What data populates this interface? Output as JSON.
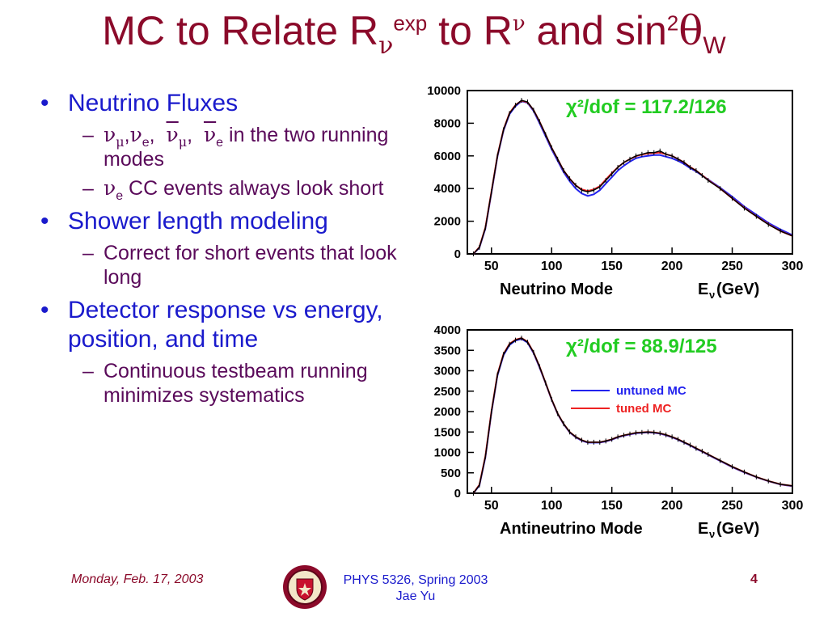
{
  "title": {
    "part1": "MC to Relate R",
    "nu1": "ν",
    "exp": "exp",
    "part2": " to R",
    "nu2": "ν",
    "part3": " and sin",
    "two": "2",
    "theta": "θ",
    "w": "W"
  },
  "bullets": [
    {
      "text": "Neutrino Fluxes",
      "subs": [
        {
          "dash": "–",
          "nu_mu": "ν",
          "mu": "μ",
          "comma1": ",",
          "nu_e": "ν",
          "e1": "e",
          "comma2": ",  ",
          "anu_mu": "ν",
          "mu2": "μ",
          "comma3": ",  ",
          "anu_e": "ν",
          "e2": "e",
          "rest": " in the two running modes"
        },
        {
          "dash": "–",
          "nu": "ν",
          "e": "e",
          "rest": " CC events always look short"
        }
      ]
    },
    {
      "text": "Shower length modeling",
      "subs": [
        {
          "dash": "–",
          "rest": "Correct for short events that look long"
        }
      ]
    },
    {
      "text": "Detector response vs energy, position, and time",
      "subs": [
        {
          "dash": "–",
          "rest": "Continuous testbeam running minimizes systematics"
        }
      ]
    }
  ],
  "colors": {
    "untuned": "#2222ee",
    "tuned": "#ee2222",
    "data": "#000000",
    "chi": "#22cc22",
    "title": "#8b0a2a",
    "bullet": "#1a1acc",
    "sub": "#5a0a5a"
  },
  "chart_data": [
    {
      "type": "line",
      "chi2_label": "χ²/dof = 117.2/126",
      "xlabel": "Neutrino Mode",
      "xlabel_var": "E",
      "xlabel_sub": "ν",
      "xlabel_unit": " (GeV)",
      "xlim": [
        30,
        300
      ],
      "ylim": [
        0,
        10000
      ],
      "xticks": [
        50,
        100,
        150,
        200,
        250,
        300
      ],
      "yticks": [
        0,
        2000,
        4000,
        6000,
        8000,
        10000
      ],
      "x": [
        35,
        40,
        45,
        50,
        55,
        60,
        65,
        70,
        75,
        80,
        85,
        90,
        95,
        100,
        105,
        110,
        115,
        120,
        125,
        130,
        135,
        140,
        145,
        150,
        155,
        160,
        165,
        170,
        175,
        180,
        185,
        190,
        195,
        200,
        205,
        210,
        215,
        220,
        225,
        230,
        240,
        250,
        260,
        270,
        280,
        290,
        300
      ],
      "series": [
        {
          "name": "data",
          "values": [
            0,
            400,
            1600,
            3800,
            6000,
            7600,
            8600,
            9100,
            9400,
            9300,
            8800,
            8100,
            7300,
            6500,
            5800,
            5100,
            4600,
            4200,
            3900,
            3800,
            3900,
            4100,
            4500,
            4900,
            5300,
            5600,
            5800,
            6000,
            6100,
            6200,
            6200,
            6300,
            6100,
            6000,
            5800,
            5600,
            5300,
            5100,
            4800,
            4500,
            4000,
            3400,
            2800,
            2300,
            1800,
            1400,
            1100
          ]
        },
        {
          "name": "untuned MC",
          "values": [
            0,
            380,
            1550,
            3750,
            5950,
            7550,
            8550,
            9050,
            9350,
            9250,
            8750,
            8000,
            7200,
            6400,
            5700,
            5000,
            4450,
            4000,
            3700,
            3550,
            3650,
            3900,
            4300,
            4700,
            5100,
            5400,
            5650,
            5850,
            5950,
            6000,
            6050,
            6050,
            5950,
            5850,
            5700,
            5500,
            5250,
            5050,
            4800,
            4550,
            4050,
            3500,
            2900,
            2400,
            1900,
            1500,
            1150
          ]
        },
        {
          "name": "tuned MC",
          "values": [
            0,
            420,
            1620,
            3820,
            6020,
            7620,
            8620,
            9120,
            9380,
            9280,
            8800,
            8100,
            7300,
            6500,
            5800,
            5100,
            4600,
            4200,
            3950,
            3850,
            3950,
            4150,
            4550,
            4950,
            5300,
            5600,
            5800,
            5980,
            6080,
            6150,
            6180,
            6200,
            6100,
            6000,
            5800,
            5600,
            5320,
            5100,
            4820,
            4520,
            4000,
            3400,
            2820,
            2300,
            1820,
            1400,
            1100
          ]
        }
      ]
    },
    {
      "type": "line",
      "chi2_label": "χ²/dof = 88.9/125",
      "xlabel": "Antineutrino Mode",
      "xlabel_var": "E",
      "xlabel_sub": "ν",
      "xlabel_unit": " (GeV)",
      "xlim": [
        30,
        300
      ],
      "ylim": [
        0,
        4000
      ],
      "xticks": [
        50,
        100,
        150,
        200,
        250,
        300
      ],
      "yticks": [
        0,
        500,
        1000,
        1500,
        2000,
        2500,
        3000,
        3500,
        4000
      ],
      "legend": {
        "position": "right",
        "entries": [
          "untuned MC",
          "tuned MC"
        ]
      },
      "x": [
        35,
        40,
        45,
        50,
        55,
        60,
        65,
        70,
        75,
        80,
        85,
        90,
        95,
        100,
        105,
        110,
        115,
        120,
        125,
        130,
        135,
        140,
        145,
        150,
        155,
        160,
        165,
        170,
        175,
        180,
        185,
        190,
        195,
        200,
        205,
        210,
        215,
        220,
        225,
        230,
        240,
        250,
        260,
        270,
        280,
        290,
        300
      ],
      "series": [
        {
          "name": "data",
          "values": [
            0,
            200,
            900,
            2000,
            2900,
            3400,
            3650,
            3750,
            3800,
            3700,
            3450,
            3100,
            2700,
            2300,
            1950,
            1700,
            1500,
            1380,
            1300,
            1250,
            1250,
            1250,
            1280,
            1320,
            1380,
            1420,
            1450,
            1480,
            1490,
            1500,
            1490,
            1470,
            1430,
            1380,
            1320,
            1250,
            1180,
            1100,
            1030,
            950,
            800,
            650,
            520,
            400,
            300,
            220,
            180
          ]
        },
        {
          "name": "untuned MC",
          "values": [
            0,
            190,
            880,
            1980,
            2880,
            3380,
            3630,
            3740,
            3780,
            3690,
            3430,
            3080,
            2690,
            2290,
            1940,
            1690,
            1490,
            1370,
            1290,
            1240,
            1240,
            1240,
            1270,
            1310,
            1370,
            1410,
            1440,
            1470,
            1480,
            1490,
            1480,
            1460,
            1420,
            1370,
            1310,
            1240,
            1170,
            1090,
            1020,
            940,
            790,
            640,
            510,
            395,
            295,
            215,
            175
          ]
        },
        {
          "name": "tuned MC",
          "values": [
            0,
            210,
            910,
            2010,
            2910,
            3410,
            3660,
            3760,
            3800,
            3710,
            3450,
            3100,
            2700,
            2300,
            1950,
            1700,
            1500,
            1380,
            1300,
            1250,
            1250,
            1250,
            1280,
            1320,
            1380,
            1420,
            1450,
            1480,
            1490,
            1500,
            1490,
            1470,
            1430,
            1380,
            1320,
            1250,
            1180,
            1100,
            1030,
            950,
            800,
            650,
            520,
            400,
            300,
            220,
            180
          ]
        }
      ]
    }
  ],
  "footer": {
    "date": "Monday, Feb. 17, 2003",
    "course_line1": "PHYS 5326, Spring 2003",
    "course_line2": "Jae Yu",
    "page": "4"
  }
}
